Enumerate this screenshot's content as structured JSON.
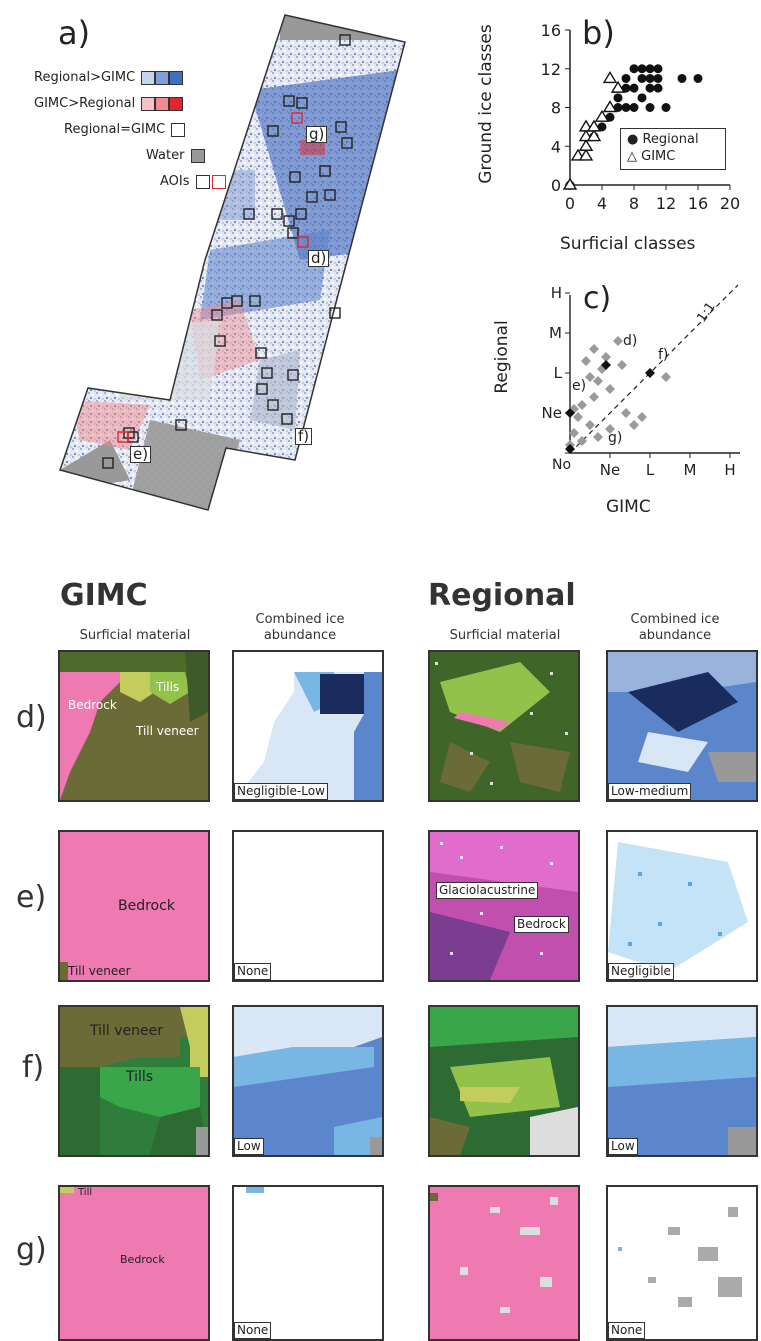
{
  "panel_a": {
    "label": "a)",
    "legend": [
      {
        "text": "Regional>GIMC",
        "colors": [
          "#c6d5ef",
          "#7f9fd8",
          "#3f6fc0"
        ]
      },
      {
        "text": "GIMC>Regional",
        "colors": [
          "#f5c3c6",
          "#ef8a8f",
          "#e0262f"
        ]
      },
      {
        "text": "Regional=GIMC",
        "colors": [
          "#ffffff"
        ]
      },
      {
        "text": "Water",
        "colors": [
          "#999999"
        ]
      },
      {
        "text": "AOIs",
        "colors": [
          "#ffffff",
          "#ffffff"
        ]
      }
    ],
    "aoi_labels": [
      "g)",
      "d)",
      "f)",
      "e)"
    ]
  },
  "chart_data": [
    {
      "type": "scatter",
      "label": "b)",
      "xlabel": "Surficial classes",
      "ylabel": "Ground ice classes",
      "xlim": [
        0,
        20
      ],
      "ylim": [
        0,
        16
      ],
      "xticks": [
        "0",
        "4",
        "8",
        "12",
        "16",
        "20"
      ],
      "yticks": [
        "0",
        "4",
        "8",
        "12",
        "16"
      ],
      "legend": [
        "Regional",
        "GIMC"
      ],
      "series": [
        {
          "name": "Regional",
          "marker": "filled-circle",
          "points": [
            [
              0,
              0
            ],
            [
              3,
              5
            ],
            [
              4,
              6
            ],
            [
              5,
              7
            ],
            [
              6,
              8
            ],
            [
              6,
              9
            ],
            [
              7,
              8
            ],
            [
              7,
              10
            ],
            [
              7,
              11
            ],
            [
              8,
              8
            ],
            [
              8,
              10
            ],
            [
              8,
              12
            ],
            [
              9,
              9
            ],
            [
              9,
              11
            ],
            [
              10,
              8
            ],
            [
              10,
              10
            ],
            [
              10,
              12
            ],
            [
              11,
              11
            ],
            [
              11,
              12
            ],
            [
              12,
              8
            ],
            [
              14,
              11
            ],
            [
              16,
              11
            ],
            [
              9,
              12
            ],
            [
              10,
              11
            ],
            [
              11,
              10
            ]
          ]
        },
        {
          "name": "GIMC",
          "marker": "open-triangle",
          "points": [
            [
              0,
              0
            ],
            [
              1,
              3
            ],
            [
              2,
              3
            ],
            [
              2,
              4
            ],
            [
              2,
              5
            ],
            [
              2,
              6
            ],
            [
              3,
              5
            ],
            [
              3,
              6
            ],
            [
              4,
              7
            ],
            [
              5,
              8
            ],
            [
              5,
              11
            ],
            [
              6,
              10
            ]
          ]
        }
      ]
    },
    {
      "type": "scatter",
      "label": "c)",
      "xlabel": "GIMC",
      "ylabel": "Regional",
      "xticks": [
        "Ne",
        "L",
        "M",
        "H"
      ],
      "yticks": [
        "No",
        "Ne",
        "L",
        "M",
        "H"
      ],
      "x_origin_label": "No",
      "reference_line": "1:1",
      "annotations": [
        "d)",
        "e)",
        "f)",
        "g)"
      ],
      "series": [
        {
          "name": "all",
          "marker": "gray-diamond",
          "points": [
            [
              0,
              0.2
            ],
            [
              0.1,
              0.5
            ],
            [
              0.2,
              0.9
            ],
            [
              0.3,
              1.2
            ],
            [
              0.5,
              0.7
            ],
            [
              0.6,
              1.4
            ],
            [
              0.7,
              1.8
            ],
            [
              0.8,
              2.1
            ],
            [
              0.9,
              2.4
            ],
            [
              1.0,
              1.6
            ],
            [
              1.2,
              2.8
            ],
            [
              0.2,
              1.6
            ],
            [
              0.4,
              2.3
            ],
            [
              0.6,
              2.6
            ],
            [
              1.4,
              1.0
            ],
            [
              1.6,
              0.7
            ],
            [
              1.0,
              0.6
            ],
            [
              1.8,
              0.9
            ],
            [
              2.4,
              1.9
            ],
            [
              0.3,
              0.3
            ],
            [
              0.7,
              0.4
            ],
            [
              1.3,
              2.2
            ],
            [
              0.1,
              1.1
            ],
            [
              0.5,
              1.9
            ]
          ]
        },
        {
          "name": "aoi",
          "marker": "black-diamond",
          "points": [
            [
              0.9,
              2.2
            ],
            [
              0,
              1.0
            ],
            [
              2.0,
              2.0
            ],
            [
              0,
              0.1
            ]
          ]
        }
      ]
    }
  ],
  "bottom": {
    "gimc_title": "GIMC",
    "regional_title": "Regional",
    "col_surficial": "Surficial material",
    "col_ice": "Combined ice abundance",
    "rows": [
      {
        "label": "d)",
        "gimc_ice_tag": "Negligible-Low",
        "reg_ice_tag": "Low-medium",
        "gimc_surf_labels": [
          "Tills",
          "Bedrock",
          "Till veneer"
        ],
        "reg_surf_labels": []
      },
      {
        "label": "e)",
        "gimc_ice_tag": "None",
        "reg_ice_tag": "Negligible",
        "gimc_surf_labels": [
          "Bedrock",
          "Till veneer"
        ],
        "reg_surf_labels": [
          "Glaciolacustrine",
          "Bedrock"
        ]
      },
      {
        "label": "f)",
        "gimc_ice_tag": "Low",
        "reg_ice_tag": "Low",
        "gimc_surf_labels": [
          "Till veneer",
          "Tills"
        ],
        "reg_surf_labels": []
      },
      {
        "label": "g)",
        "gimc_ice_tag": "None",
        "reg_ice_tag": "None",
        "gimc_surf_labels": [
          "Till",
          "Bedrock"
        ],
        "reg_surf_labels": []
      }
    ]
  }
}
